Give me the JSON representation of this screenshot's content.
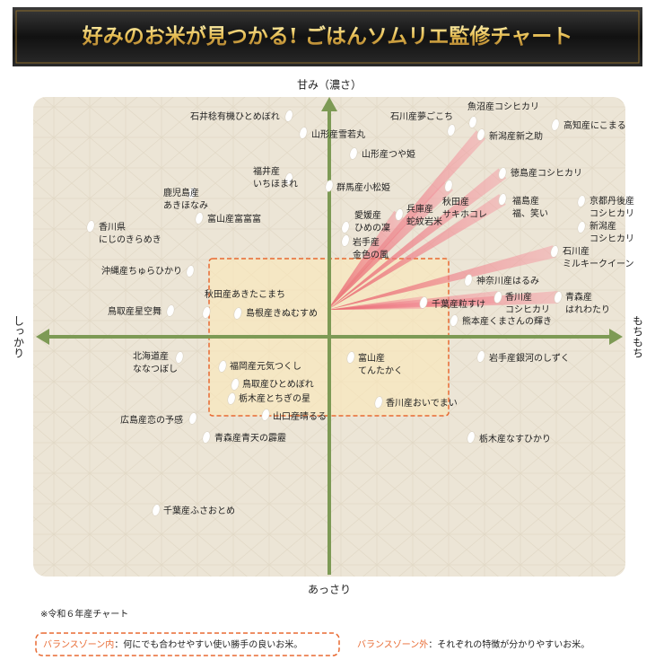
{
  "header": {
    "title": "好みのお米が見つかる! ごはんソムリエ監修チャート"
  },
  "axes": {
    "top": "甘み（濃さ）",
    "bottom": "あっさり",
    "left": "しっかり",
    "right": "もちもち"
  },
  "items": [
    {
      "lines": [
        "石井稔有機ひとめぼれ"
      ]
    },
    {
      "lines": [
        "山形産雪若丸"
      ]
    },
    {
      "lines": [
        "石川産夢ごこち"
      ]
    },
    {
      "lines": [
        "魚沼産コシヒカリ"
      ]
    },
    {
      "lines": [
        "新潟産新之助"
      ]
    },
    {
      "lines": [
        "高知産にこまる"
      ]
    },
    {
      "lines": [
        "山形産つや姫"
      ]
    },
    {
      "lines": [
        "徳島産コシヒカリ"
      ]
    },
    {
      "lines": [
        "福井産",
        "いちほまれ"
      ]
    },
    {
      "lines": [
        "鹿児島産",
        "あきほなみ"
      ]
    },
    {
      "lines": [
        "群馬産小松姫"
      ]
    },
    {
      "lines": [
        "秋田産",
        "サキホコレ"
      ]
    },
    {
      "lines": [
        "福島産",
        "福、笑い"
      ]
    },
    {
      "lines": [
        "京都丹後産",
        "コシヒカリ"
      ]
    },
    {
      "lines": [
        "愛媛産",
        "ひめの凜"
      ]
    },
    {
      "lines": [
        "兵庫産",
        "蛇紋岩米"
      ]
    },
    {
      "lines": [
        "富山産富富富"
      ]
    },
    {
      "lines": [
        "香川県",
        "にじのきらめき"
      ]
    },
    {
      "lines": [
        "新潟産",
        "コシヒカリ"
      ]
    },
    {
      "lines": [
        "岩手産",
        "金色の風"
      ]
    },
    {
      "lines": [
        "石川産",
        "ミルキークイーン"
      ]
    },
    {
      "lines": [
        "沖縄産ちゅらひかり"
      ]
    },
    {
      "lines": [
        "神奈川産はるみ"
      ]
    },
    {
      "lines": [
        "秋田産あきたこまち"
      ]
    },
    {
      "lines": [
        "香川産",
        "コシヒカリ"
      ]
    },
    {
      "lines": [
        "青森産",
        "はれわたり"
      ]
    },
    {
      "lines": [
        "千葉産粒すけ"
      ]
    },
    {
      "lines": [
        "鳥取産星空舞"
      ]
    },
    {
      "lines": [
        "島根産きぬむすめ"
      ]
    },
    {
      "lines": [
        "熊本産くまさんの輝き"
      ]
    },
    {
      "lines": [
        "北海道産",
        "ななつぼし"
      ]
    },
    {
      "lines": [
        "岩手産銀河のしずく"
      ]
    },
    {
      "lines": [
        "富山産",
        "てんたかく"
      ]
    },
    {
      "lines": [
        "福岡産元気つくし"
      ]
    },
    {
      "lines": [
        "鳥取産ひとめぼれ"
      ]
    },
    {
      "lines": [
        "栃木産とちぎの星"
      ]
    },
    {
      "lines": [
        "香川産おいでまい"
      ]
    },
    {
      "lines": [
        "山口産晴るる"
      ]
    },
    {
      "lines": [
        "広島産恋の予感"
      ]
    },
    {
      "lines": [
        "青森産青天の霹靂"
      ]
    },
    {
      "lines": [
        "栃木産なすひかり"
      ]
    },
    {
      "lines": [
        "千葉産ふさおとめ"
      ]
    }
  ],
  "note": "※令和６年産チャート",
  "legend": [
    {
      "term": "バランスゾーン内",
      "desc": "：何にでも合わせやすい使い勝手の良いお米。"
    },
    {
      "term": "バランスゾーン外",
      "desc": "：それぞれの特徴が分かりやすいお米。"
    }
  ]
}
